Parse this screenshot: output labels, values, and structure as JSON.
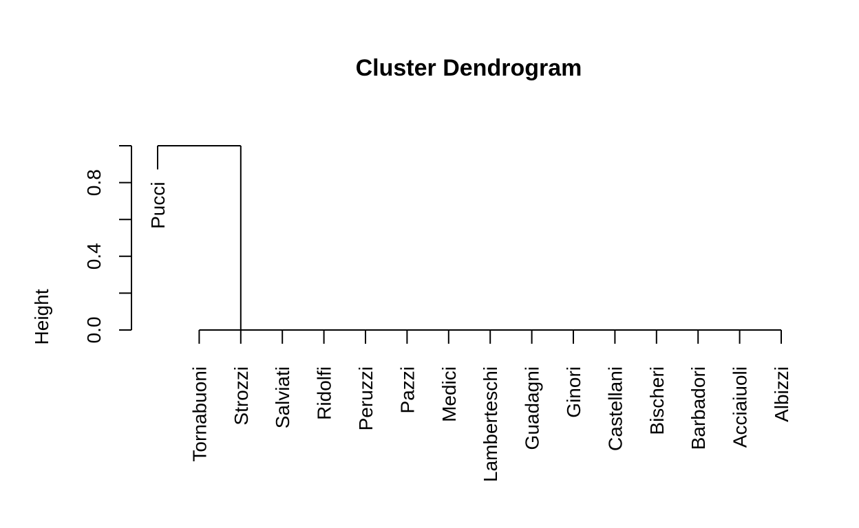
{
  "chart_data": {
    "type": "dendrogram",
    "title": "Cluster Dendrogram",
    "xlabel": "",
    "ylabel": "Height",
    "ylim": [
      0,
      1
    ],
    "yticks": [
      0.0,
      0.2,
      0.4,
      0.6,
      0.8,
      1.0
    ],
    "ytick_labels": [
      "0.0",
      "0.4",
      "0.8"
    ],
    "labeled_ticks": [
      0.0,
      0.4,
      0.8
    ],
    "leaves": [
      "Pucci",
      "Tornabuoni",
      "Strozzi",
      "Salviati",
      "Ridolfi",
      "Peruzzi",
      "Pazzi",
      "Medici",
      "Lamberteschi",
      "Guadagni",
      "Ginori",
      "Castellani",
      "Bischeri",
      "Barbadori",
      "Acciaiuoli",
      "Albizzi"
    ],
    "leaf_heights": [
      0.92,
      0,
      0,
      0,
      0,
      0,
      0,
      0,
      0,
      0,
      0,
      0,
      0,
      0,
      0,
      0
    ],
    "merges": [
      {
        "left": "Pucci",
        "right": "cluster_of_15",
        "height": 1.0
      },
      {
        "left": "Tornabuoni",
        "right": "Albizzi",
        "height": 0.0,
        "description": "15 leaves merged at height 0"
      }
    ]
  }
}
